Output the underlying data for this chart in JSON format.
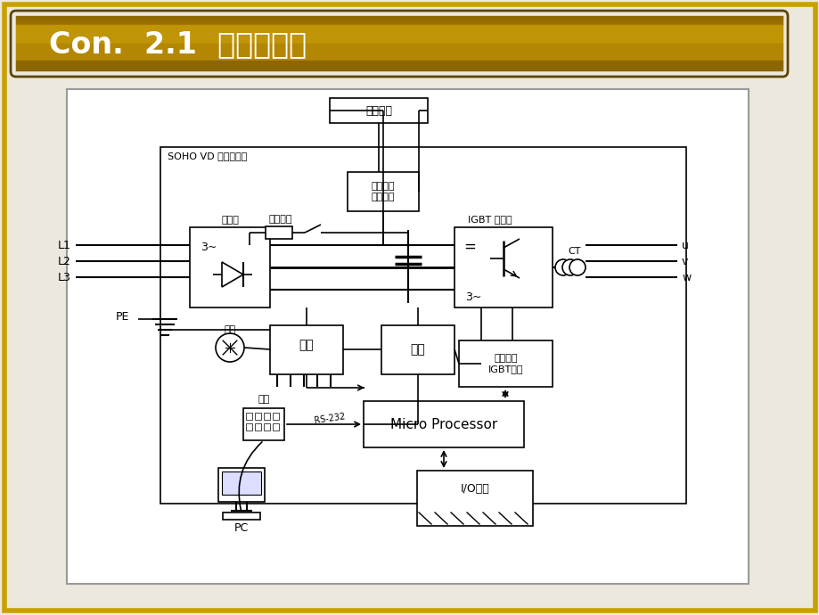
{
  "title": "Con.  2.1  变频器结构",
  "slide_bg": "#EDE8DE",
  "diagram_bg": "#FFFFFF",
  "golden_dark": "#7A6000",
  "golden_mid": "#B89000",
  "golden_light": "#D4A800",
  "border_golden": "#C8A000",
  "lc": "#000000",
  "label_soho": "SOHO VD 矢量变频器",
  "label_brake_res_top": "制动电阻",
  "label_brake_unit": "制动单元\n（选项）",
  "label_brake_res": "制动电阻",
  "label_rectifier": "整流桥",
  "label_igbt": "IGBT 变频器",
  "label_fan": "风扇",
  "label_power": "电源",
  "label_measure": "测量",
  "label_gate": "门驱动器\nIGBT保护",
  "label_keyboard": "键盘",
  "label_micro": "Micro Processor",
  "label_io": "I/O控制",
  "label_pc": "PC",
  "label_ct": "CT",
  "label_rs232": "RS-232",
  "label_3tilde": "3~",
  "label_equals": "=",
  "label_pe": "PE",
  "labels_uvw": [
    "u",
    "v",
    "w"
  ],
  "labels_L": [
    "L1",
    "L2",
    "L3"
  ]
}
